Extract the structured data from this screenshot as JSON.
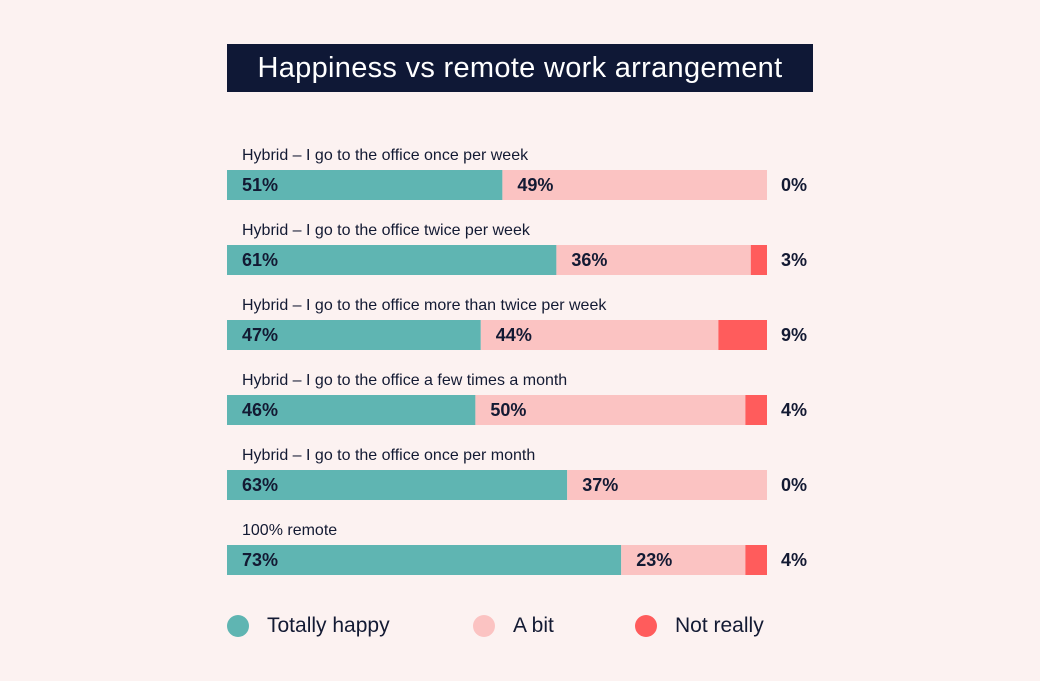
{
  "colors": {
    "background": "#fcf2f1",
    "title_bg": "#0f1836",
    "totally_happy": "#5fb5b2",
    "a_bit": "#fbc3c2",
    "not_really": "#ff5c5c",
    "text": "#131a33"
  },
  "chart_data": {
    "type": "bar",
    "orientation": "horizontal",
    "stacked": true,
    "title": "Happiness vs remote work arrangement",
    "categories": [
      "Hybrid – I go to the office once per week",
      "Hybrid – I go to the office twice per week",
      "Hybrid – I go to the office more than twice per week",
      "Hybrid – I go to the office a few times a month",
      "Hybrid – I go to the office once per month",
      "100% remote"
    ],
    "series": [
      {
        "name": "Totally happy",
        "values": [
          51,
          61,
          47,
          46,
          63,
          73
        ]
      },
      {
        "name": "A bit",
        "values": [
          49,
          36,
          44,
          50,
          37,
          23
        ]
      },
      {
        "name": "Not really",
        "values": [
          0,
          3,
          9,
          4,
          0,
          4
        ]
      }
    ],
    "value_suffix": "%",
    "legend_position": "bottom"
  },
  "legend": {
    "items": [
      "Totally happy",
      "A bit",
      "Not really"
    ]
  }
}
